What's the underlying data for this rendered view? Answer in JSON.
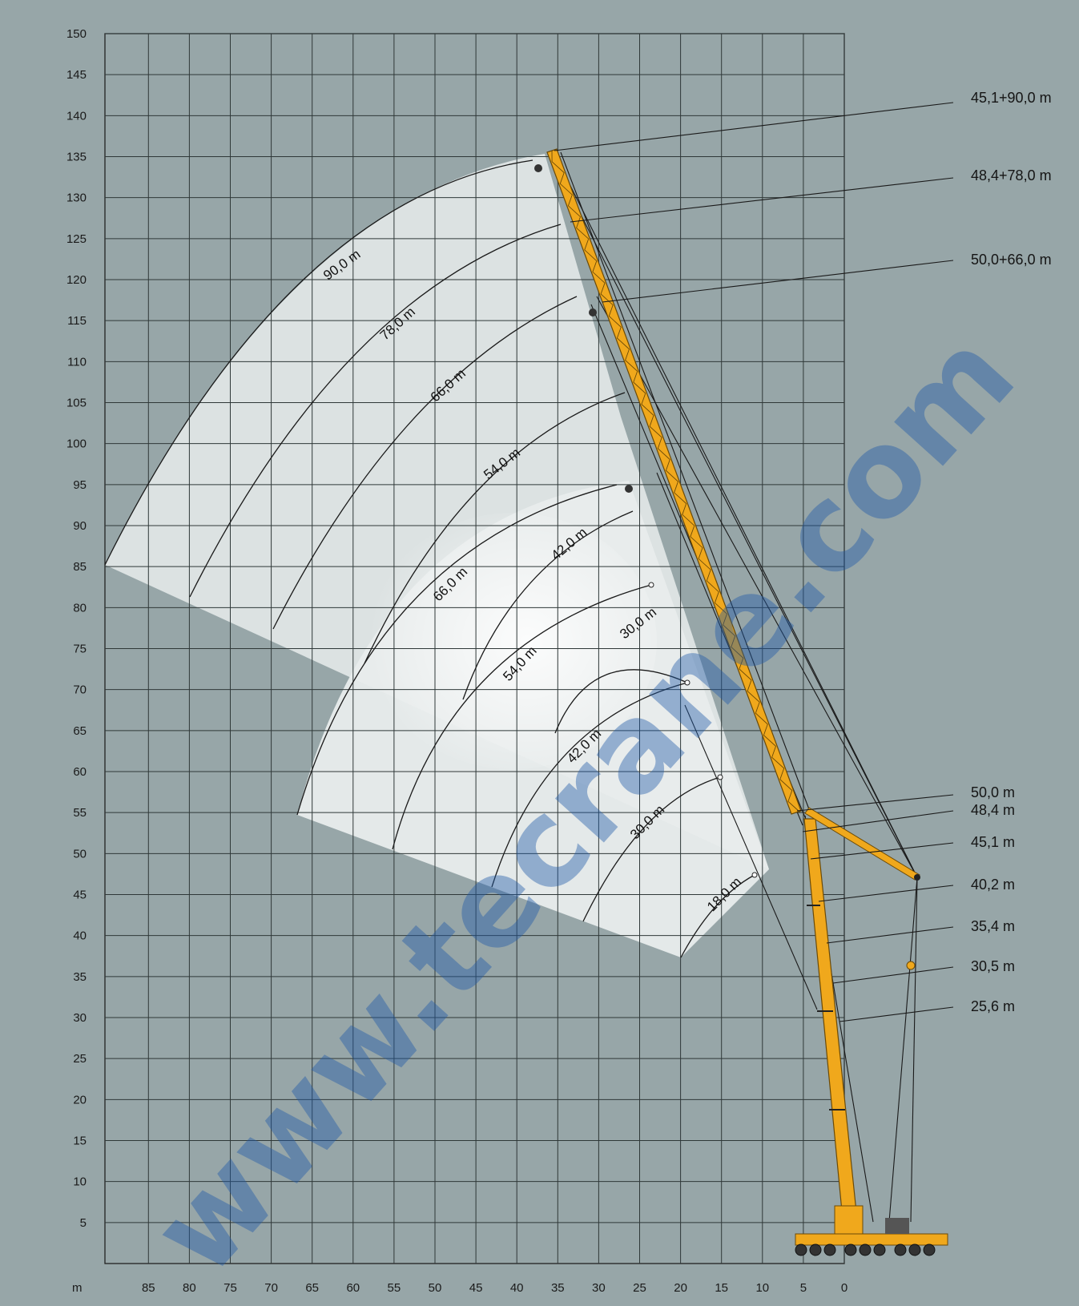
{
  "watermark": "www.tecrane.com",
  "axes": {
    "x_unit": "m",
    "y_ticks": [
      5,
      10,
      15,
      20,
      25,
      30,
      35,
      40,
      45,
      50,
      55,
      60,
      65,
      70,
      75,
      80,
      85,
      90,
      95,
      100,
      105,
      110,
      115,
      120,
      125,
      130,
      135,
      140,
      145,
      150
    ],
    "x_ticks": [
      85,
      80,
      75,
      70,
      65,
      60,
      55,
      50,
      45,
      40,
      35,
      30,
      25,
      20,
      15,
      10,
      5,
      0
    ]
  },
  "boom_labels": [
    "45,1+90,0 m",
    "48,4+78,0 m",
    "50,0+66,0 m",
    "50,0 m",
    "48,4 m",
    "45,1 m",
    "40,2 m",
    "35,4 m",
    "30,5 m",
    "25,6 m"
  ],
  "arc_labels": [
    "90,0 m",
    "78,0 m",
    "66,0 m",
    "54,0 m",
    "66,0 m",
    "42,0 m",
    "54,0 m",
    "30,0 m",
    "42,0 m",
    "30,0 m",
    "18,0 m"
  ],
  "colors": {
    "background": "#97a6a8",
    "boom": "#f0a81c",
    "region": "#e8ecec",
    "grid": "#333a3a"
  }
}
